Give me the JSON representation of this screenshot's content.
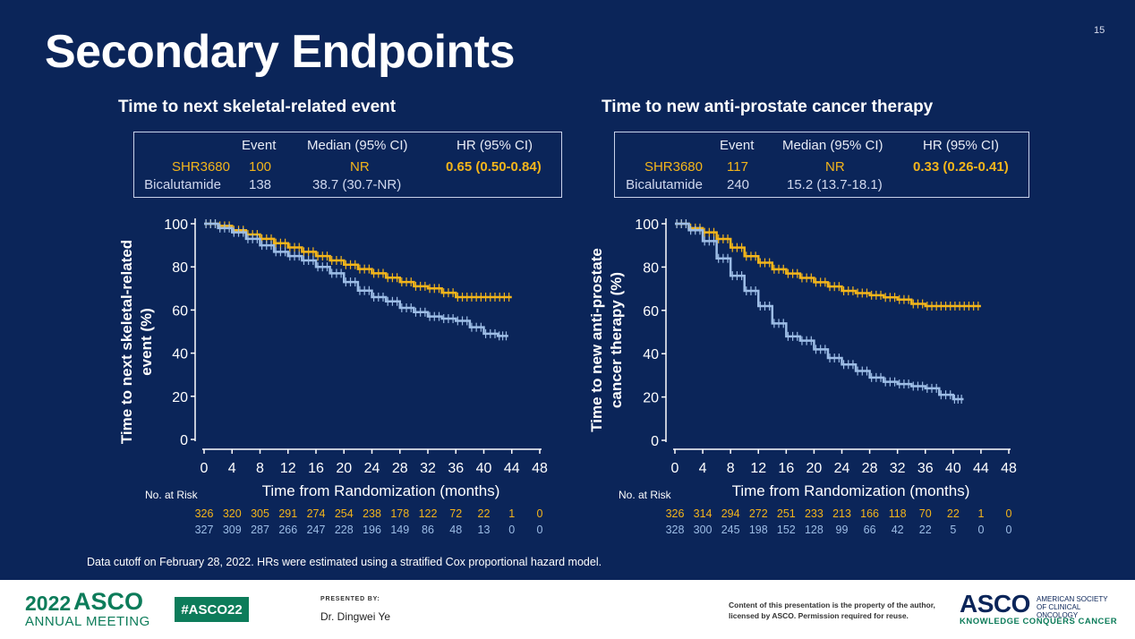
{
  "slide": {
    "title": "Secondary Endpoints",
    "page_number": "15",
    "footnote": "Data cutoff on February 28, 2022. HRs were estimated using a stratified Cox proportional hazard model."
  },
  "colors": {
    "background": "#0b2559",
    "shr3680": "#f3b51b",
    "bicalutamide": "#9dbde6",
    "brand_green": "#0d7c5a"
  },
  "table_headers": {
    "event": "Event",
    "median": "Median (95% CI)",
    "hr": "HR (95% CI)"
  },
  "chart_data": [
    {
      "type": "line",
      "title": "Time to next skeletal-related event",
      "xlabel": "Time from Randomization (months)",
      "ylabel_line1": "Time to next skeletal-related",
      "ylabel_line2": "event (%)",
      "xlim": [
        0,
        48
      ],
      "ylim": [
        0,
        100
      ],
      "xticks": [
        "0",
        "4",
        "8",
        "12",
        "16",
        "20",
        "24",
        "28",
        "32",
        "36",
        "40",
        "44",
        "48"
      ],
      "yticks": [
        "0",
        "20",
        "40",
        "60",
        "80",
        "100"
      ],
      "risk_label": "No. at Risk",
      "summary": [
        {
          "arm": "SHR3680",
          "event": "100",
          "median": "NR",
          "hr": "0.65 (0.50-0.84)"
        },
        {
          "arm": "Bicalutamide",
          "event": "138",
          "median": "38.7 (30.7-NR)",
          "hr": ""
        }
      ],
      "series": [
        {
          "name": "SHR3680",
          "x": [
            0,
            2,
            4,
            6,
            8,
            10,
            12,
            14,
            16,
            18,
            20,
            22,
            24,
            26,
            28,
            30,
            32,
            34,
            36,
            38,
            40,
            42,
            44
          ],
          "y": [
            100,
            99,
            97,
            95,
            93,
            91,
            89,
            87,
            85,
            83,
            81,
            79,
            77,
            75,
            73,
            71,
            70,
            68,
            66,
            66,
            66,
            66,
            66
          ],
          "risk": [
            "326",
            "320",
            "305",
            "291",
            "274",
            "254",
            "238",
            "178",
            "122",
            "72",
            "22",
            "1",
            "0"
          ]
        },
        {
          "name": "Bicalutamide",
          "x": [
            0,
            2,
            4,
            6,
            8,
            10,
            12,
            14,
            16,
            18,
            20,
            22,
            24,
            26,
            28,
            30,
            32,
            34,
            36,
            38,
            40,
            42,
            43.5
          ],
          "y": [
            100,
            98,
            96,
            93,
            90,
            87,
            85,
            83,
            80,
            77,
            73,
            69,
            66,
            64,
            61,
            59,
            57,
            56,
            55,
            52,
            49,
            48,
            48
          ],
          "risk": [
            "327",
            "309",
            "287",
            "266",
            "247",
            "228",
            "196",
            "149",
            "86",
            "48",
            "13",
            "0",
            "0"
          ]
        }
      ]
    },
    {
      "type": "line",
      "title": "Time to new anti-prostate cancer therapy",
      "xlabel": "Time from Randomization (months)",
      "ylabel_line1": "Time to new anti-prostate",
      "ylabel_line2": "cancer therapy (%)",
      "xlim": [
        0,
        48
      ],
      "ylim": [
        0,
        100
      ],
      "xticks": [
        "0",
        "4",
        "8",
        "12",
        "16",
        "20",
        "24",
        "28",
        "32",
        "36",
        "40",
        "44",
        "48"
      ],
      "yticks": [
        "0",
        "20",
        "40",
        "60",
        "80",
        "100"
      ],
      "risk_label": "No. at Risk",
      "summary": [
        {
          "arm": "SHR3680",
          "event": "117",
          "median": "NR",
          "hr": "0.33 (0.26-0.41)"
        },
        {
          "arm": "Bicalutamide",
          "event": "240",
          "median": "15.2 (13.7-18.1)",
          "hr": ""
        }
      ],
      "series": [
        {
          "name": "SHR3680",
          "x": [
            0,
            2,
            4,
            6,
            8,
            10,
            12,
            14,
            16,
            18,
            20,
            22,
            24,
            26,
            28,
            30,
            32,
            34,
            36,
            38,
            40,
            42,
            44
          ],
          "y": [
            100,
            98,
            96,
            93,
            89,
            85,
            82,
            79,
            77,
            75,
            73,
            71,
            69,
            68,
            67,
            66,
            65,
            63,
            62,
            62,
            62,
            62,
            62
          ],
          "risk": [
            "326",
            "314",
            "294",
            "272",
            "251",
            "233",
            "213",
            "166",
            "118",
            "70",
            "22",
            "1",
            "0"
          ]
        },
        {
          "name": "Bicalutamide",
          "x": [
            0,
            2,
            4,
            6,
            8,
            10,
            12,
            14,
            16,
            18,
            20,
            22,
            24,
            26,
            28,
            30,
            32,
            34,
            36,
            38,
            40,
            41.5
          ],
          "y": [
            100,
            97,
            92,
            84,
            76,
            69,
            62,
            54,
            48,
            46,
            42,
            38,
            35,
            32,
            29,
            27,
            26,
            25,
            24,
            21,
            19,
            19
          ],
          "risk": [
            "328",
            "300",
            "245",
            "198",
            "152",
            "128",
            "99",
            "66",
            "42",
            "22",
            "5",
            "0",
            "0"
          ]
        }
      ]
    }
  ],
  "footer": {
    "year": "2022",
    "asco": "ASCO",
    "annual": "ANNUAL MEETING",
    "hashtag": "#ASCO22",
    "presented_by": "PRESENTED BY:",
    "presenter": "Dr. Dingwei Ye",
    "content_note": "Content of this presentation is the property of the author, licensed by ASCO. Permission required for reuse.",
    "logo": "ASCO",
    "society": "AMERICAN SOCIETY OF CLINICAL ONCOLOGY",
    "tagline": "KNOWLEDGE CONQUERS CANCER"
  }
}
